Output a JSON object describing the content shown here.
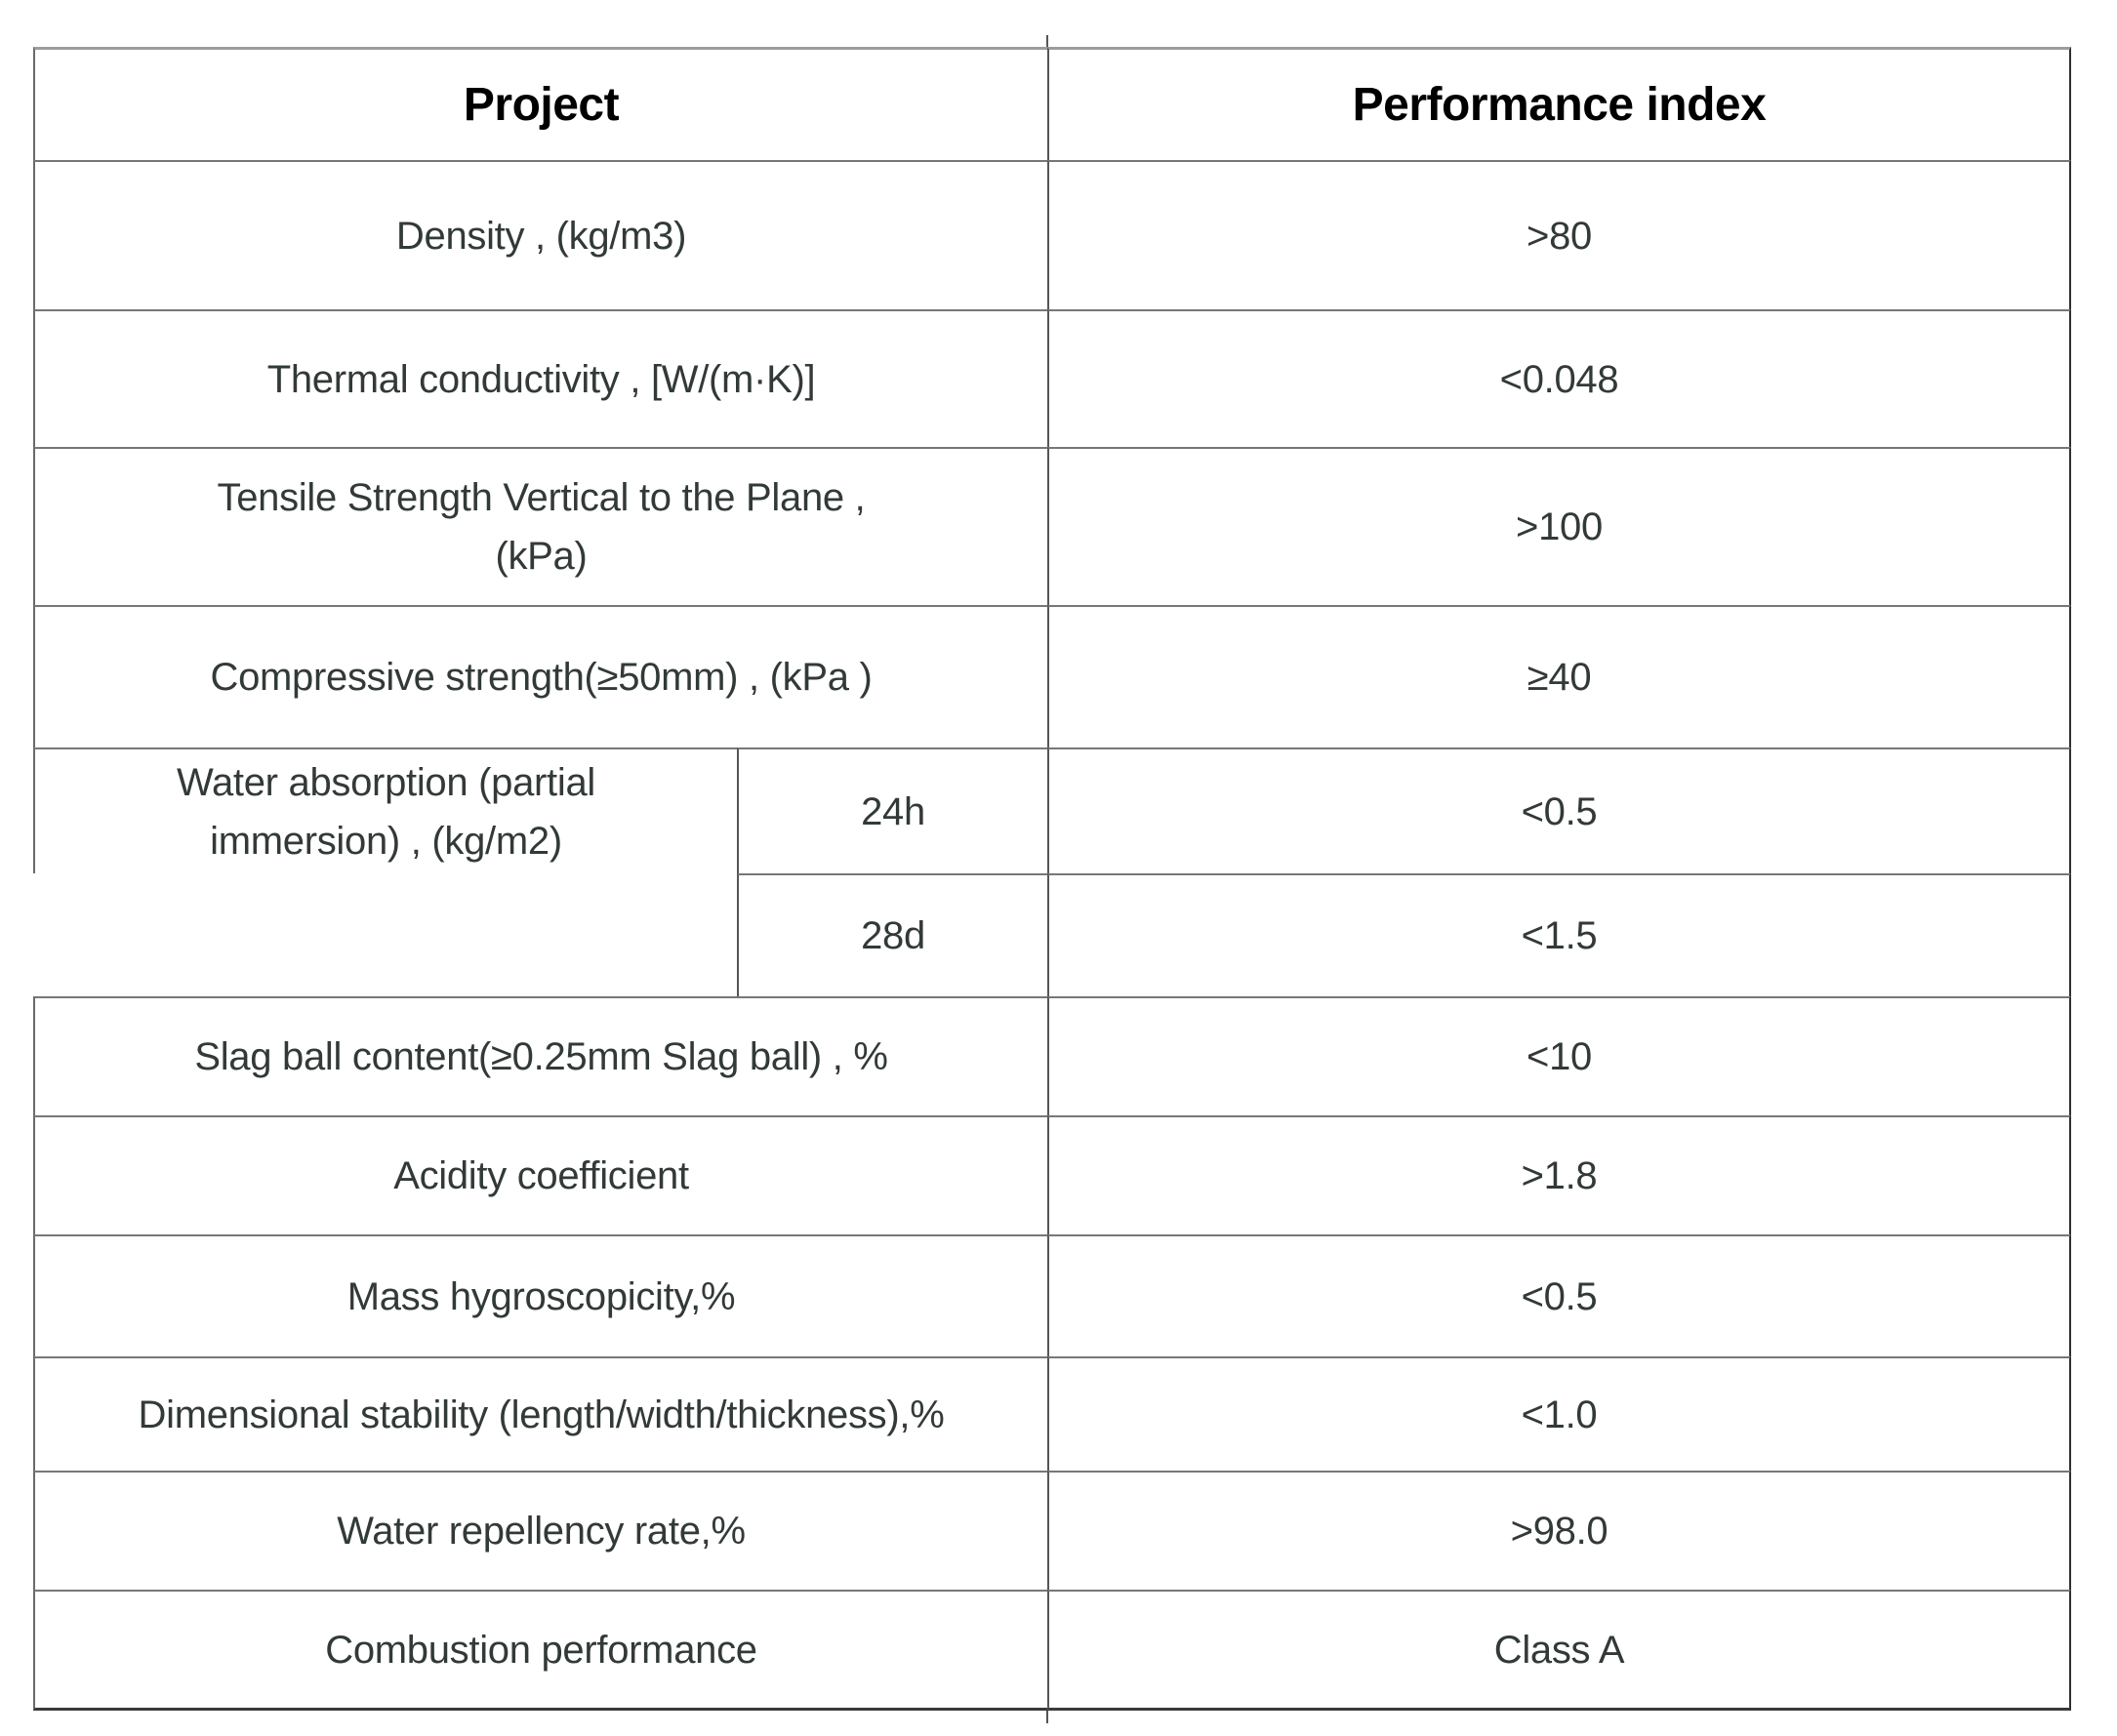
{
  "table": {
    "header": {
      "project": "Project",
      "performance_index": "Performance index"
    },
    "rows": [
      {
        "label": "Density , (kg/m3)",
        "value": ">80"
      },
      {
        "label": "Thermal conductivity , [W/(m·K)]",
        "value": "<0.048"
      },
      {
        "label": "Tensile Strength Vertical to the Plane ,\n(kPa)",
        "value": ">100"
      },
      {
        "label": "Compressive strength(≥50mm) , (kPa )",
        "value": "≥40"
      }
    ],
    "water_absorption": {
      "label": "Water absorption (partial\nimmersion) , (kg/m2)",
      "sub_rows": [
        {
          "period": "24h",
          "value": "<0.5"
        },
        {
          "period": "28d",
          "value": "<1.5"
        }
      ]
    },
    "rows_bottom": [
      {
        "label": "Slag ball content(≥0.25mm Slag ball) , %",
        "value": "<10"
      },
      {
        "label": "Acidity coefficient",
        "value": ">1.8"
      },
      {
        "label": "Mass hygroscopicity,%",
        "value": "<0.5"
      },
      {
        "label": "Dimensional stability (length/width/thickness),%",
        "value": "<1.0"
      },
      {
        "label": "Water repellency rate,%",
        "value": ">98.0"
      },
      {
        "label": "Combustion performance",
        "value": "Class A"
      }
    ],
    "colors": {
      "body_text": "#323a38",
      "header_text": "#000000",
      "grid_line": "#767676"
    }
  }
}
